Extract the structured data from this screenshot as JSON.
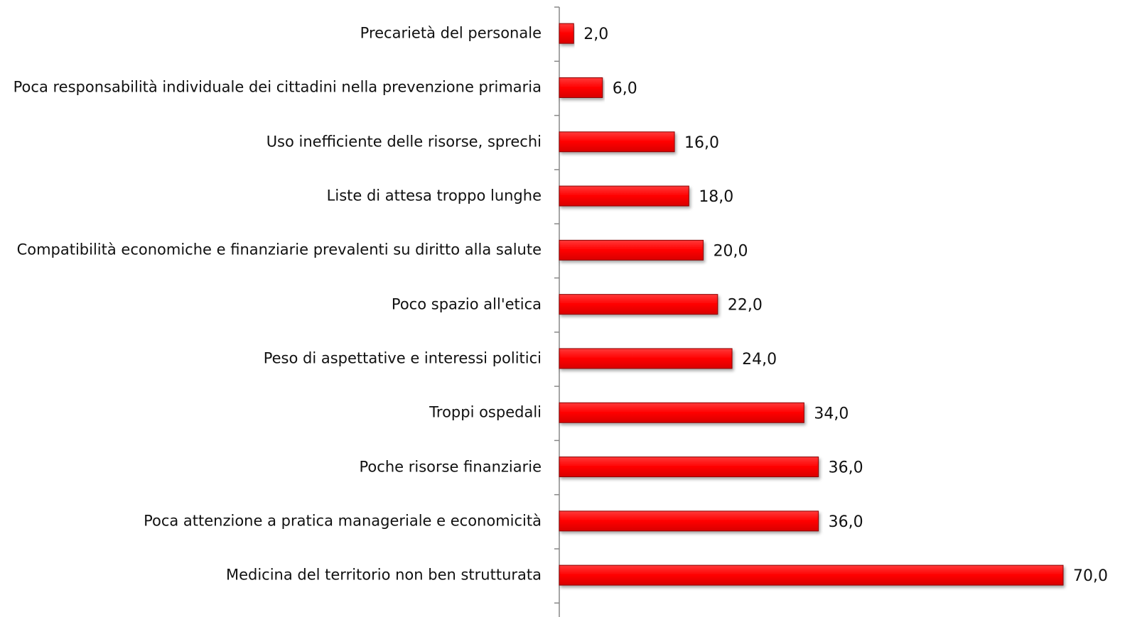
{
  "chart_data": {
    "type": "bar",
    "orientation": "horizontal",
    "categories": [
      "Precarietà del personale",
      "Poca responsabilità individuale dei cittadini nella prevenzione primaria",
      "Uso inefficiente delle risorse, sprechi",
      "Liste di attesa troppo lunghe",
      "Compatibilità economiche e finanziarie prevalenti su diritto alla salute",
      "Poco spazio all'etica ",
      "Peso di aspettative e interessi politici",
      "Troppi ospedali",
      "Poche risorse finanziarie",
      "Poca attenzione a pratica manageriale e economicità",
      "Medicina del territorio non ben strutturata"
    ],
    "values": [
      2,
      6,
      16,
      18,
      20,
      22,
      24,
      34,
      36,
      36,
      70
    ],
    "value_labels": [
      "2,0",
      "6,0",
      "16,0",
      "18,0",
      "20,0",
      "22,0",
      "24,0",
      "34,0",
      "36,0",
      "36,0",
      "70,0"
    ],
    "color": "#ff0000",
    "xlim": [
      0,
      70
    ]
  }
}
